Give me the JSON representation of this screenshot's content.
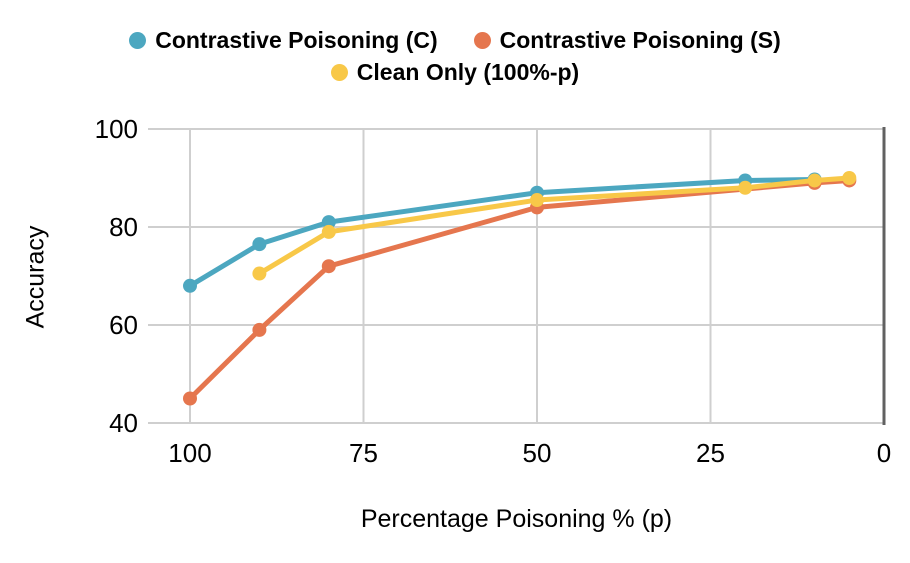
{
  "chart_data": {
    "type": "line",
    "title": "",
    "xlabel": "Percentage Poisoning % (p)",
    "ylabel": "Accuracy",
    "x_axis": {
      "ticks": [
        100,
        75,
        50,
        25,
        0
      ],
      "range": [
        100,
        0
      ],
      "reversed": true
    },
    "y_axis": {
      "ticks": [
        100,
        80,
        60,
        40
      ],
      "range": [
        40,
        100
      ]
    },
    "grid": "on",
    "legend_position": "top",
    "colors": {
      "grid": "#CFCFCF",
      "axis_edge": "#616161",
      "text": "#000000",
      "background": "#FFFFFF"
    },
    "series": [
      {
        "name": "Contrastive Poisoning (C)",
        "color": "#4CA7C0",
        "marker": "circle",
        "points": [
          [
            100,
            68
          ],
          [
            90,
            76.5
          ],
          [
            80,
            81
          ],
          [
            50,
            87
          ],
          [
            20,
            89.5
          ],
          [
            10,
            89.7
          ]
        ]
      },
      {
        "name": "Contrastive Poisoning (S)",
        "color": "#E5764E",
        "marker": "circle",
        "points": [
          [
            100,
            45
          ],
          [
            90,
            59
          ],
          [
            80,
            72
          ],
          [
            50,
            84
          ],
          [
            10,
            89
          ],
          [
            5,
            89.5
          ]
        ]
      },
      {
        "name": "Clean Only (100%-p)",
        "color": "#F8C848",
        "marker": "circle",
        "points": [
          [
            90,
            70.5
          ],
          [
            80,
            79
          ],
          [
            50,
            85.5
          ],
          [
            20,
            88
          ],
          [
            10,
            89.5
          ],
          [
            5,
            90
          ]
        ]
      }
    ]
  }
}
